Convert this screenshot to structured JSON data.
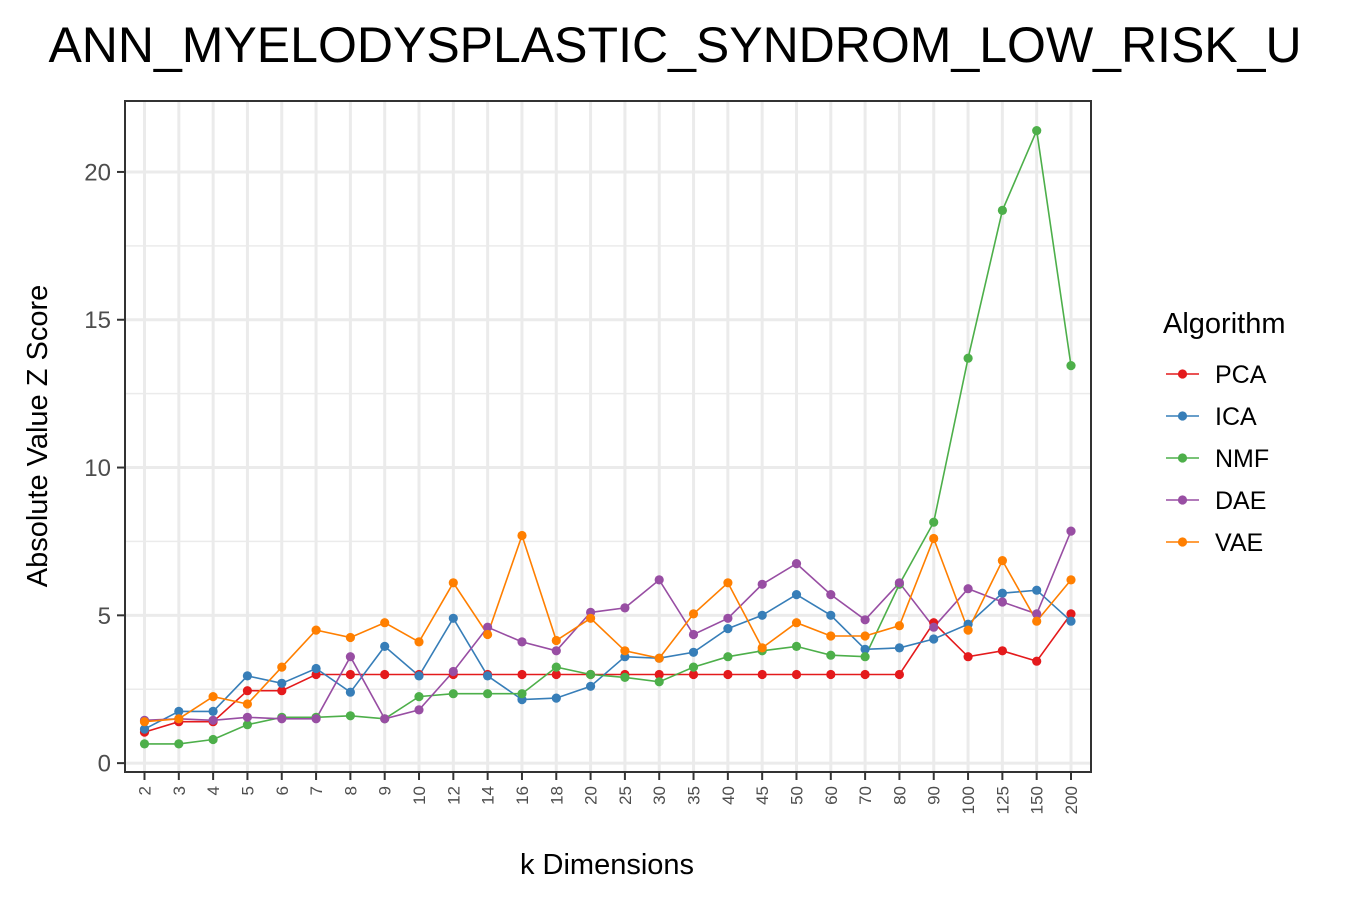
{
  "chart_data": {
    "type": "line",
    "title": "ANN_MYELODYSPLASTIC_SYNDROM_LOW_RISK_U",
    "xlabel": "k Dimensions",
    "ylabel": "Absolute Value Z Score",
    "categories": [
      "2",
      "3",
      "4",
      "5",
      "6",
      "7",
      "8",
      "9",
      "10",
      "12",
      "14",
      "16",
      "18",
      "20",
      "25",
      "30",
      "35",
      "40",
      "45",
      "50",
      "60",
      "70",
      "80",
      "90",
      "100",
      "125",
      "150",
      "200"
    ],
    "ylim": [
      -0.3,
      22.4
    ],
    "yticks": [
      0,
      5,
      10,
      15,
      20
    ],
    "grid": true,
    "legend": {
      "title": "Algorithm",
      "position": "right"
    },
    "series": [
      {
        "name": "PCA",
        "color": "#e41a1c",
        "values": [
          1.05,
          1.4,
          1.4,
          2.45,
          2.45,
          3.0,
          3.0,
          3.0,
          3.0,
          3.0,
          3.0,
          3.0,
          3.0,
          3.0,
          3.0,
          3.0,
          3.0,
          3.0,
          3.0,
          3.0,
          3.0,
          3.0,
          3.0,
          4.75,
          3.6,
          3.8,
          3.45,
          5.05
        ]
      },
      {
        "name": "ICA",
        "color": "#377eb8",
        "values": [
          1.15,
          1.75,
          1.75,
          2.95,
          2.7,
          3.2,
          2.4,
          3.95,
          2.95,
          4.9,
          2.95,
          2.15,
          2.2,
          2.6,
          3.6,
          3.55,
          3.75,
          4.55,
          5.0,
          5.7,
          5.0,
          3.85,
          3.9,
          4.2,
          4.7,
          5.75,
          5.85,
          4.8
        ]
      },
      {
        "name": "NMF",
        "color": "#4daf4a",
        "values": [
          0.65,
          0.65,
          0.8,
          1.3,
          1.55,
          1.55,
          1.6,
          1.5,
          2.25,
          2.35,
          2.35,
          2.35,
          3.25,
          3.0,
          2.9,
          2.75,
          3.25,
          3.6,
          3.8,
          3.95,
          3.65,
          3.6,
          6.05,
          8.15,
          13.7,
          18.7,
          21.4,
          13.45
        ]
      },
      {
        "name": "DAE",
        "color": "#984ea3",
        "values": [
          1.45,
          1.5,
          1.45,
          1.55,
          1.5,
          1.5,
          3.6,
          1.5,
          1.8,
          3.1,
          4.6,
          4.1,
          3.8,
          5.1,
          5.25,
          6.2,
          4.35,
          4.9,
          6.05,
          6.75,
          5.7,
          4.85,
          6.1,
          4.6,
          5.9,
          5.45,
          5.05,
          7.85
        ]
      },
      {
        "name": "VAE",
        "color": "#ff7f00",
        "values": [
          1.4,
          1.5,
          2.25,
          2.0,
          3.25,
          4.5,
          4.25,
          4.75,
          4.1,
          6.1,
          4.35,
          7.7,
          4.15,
          4.9,
          3.8,
          3.55,
          5.05,
          6.1,
          3.9,
          4.75,
          4.3,
          4.3,
          4.65,
          7.6,
          4.5,
          6.85,
          4.8,
          6.2
        ]
      }
    ]
  }
}
